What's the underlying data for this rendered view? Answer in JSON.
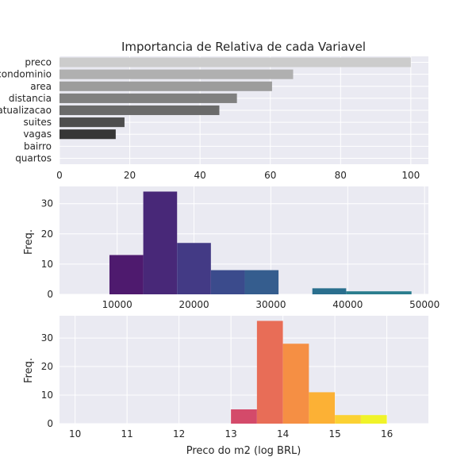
{
  "chart_data": [
    {
      "type": "bar",
      "orientation": "horizontal",
      "title": "Importancia de Relativa de cada Variavel",
      "categories": [
        "preco",
        "condominio",
        "area",
        "distancia",
        "atualizacao",
        "suites",
        "vagas",
        "bairro",
        "quartos"
      ],
      "values": [
        100,
        66.5,
        60.5,
        50.5,
        45.5,
        18.5,
        16,
        0,
        0
      ],
      "colors": [
        "#cccccc",
        "#b0b0b0",
        "#9c9c9c",
        "#808080",
        "#6a6a6a",
        "#4e4e4e",
        "#363636",
        "#eaeaf2",
        "#eaeaf2"
      ],
      "xlim": [
        0,
        105
      ],
      "xticks": [
        0,
        20,
        40,
        60,
        80,
        100
      ],
      "grid": true
    },
    {
      "type": "histogram",
      "ylabel": "Freq.",
      "bins": [
        {
          "x0": 9000,
          "x1": 13400,
          "count": 13,
          "color": "#4e1a6e"
        },
        {
          "x0": 13400,
          "x1": 17800,
          "count": 34,
          "color": "#482878"
        },
        {
          "x0": 17800,
          "x1": 22200,
          "count": 17,
          "color": "#433a85"
        },
        {
          "x0": 22200,
          "x1": 26600,
          "count": 8,
          "color": "#3b4b8c"
        },
        {
          "x0": 26600,
          "x1": 31000,
          "count": 8,
          "color": "#355d8e"
        },
        {
          "x0": 35400,
          "x1": 39800,
          "count": 2,
          "color": "#2a6f8e"
        },
        {
          "x0": 39800,
          "x1": 48300,
          "count": 1,
          "color": "#2a7d8e"
        }
      ],
      "xlim": [
        2500,
        50500
      ],
      "ylim": [
        0,
        35.7
      ],
      "xticks": [
        10000,
        20000,
        30000,
        40000,
        50000
      ],
      "yticks": [
        0,
        10,
        20,
        30
      ],
      "grid": true
    },
    {
      "type": "histogram",
      "xlabel": "Preco do m2 (log BRL)",
      "ylabel": "Freq.",
      "bins": [
        {
          "x0": 13.0,
          "x1": 13.5,
          "count": 5,
          "color": "#d44a6a"
        },
        {
          "x0": 13.5,
          "x1": 14.0,
          "count": 36,
          "color": "#e86d57"
        },
        {
          "x0": 14.0,
          "x1": 14.5,
          "count": 28,
          "color": "#f58f44"
        },
        {
          "x0": 14.5,
          "x1": 15.0,
          "count": 11,
          "color": "#fcb135"
        },
        {
          "x0": 15.0,
          "x1": 15.5,
          "count": 3,
          "color": "#fbd133"
        },
        {
          "x0": 15.5,
          "x1": 16.0,
          "count": 3,
          "color": "#f0f329"
        }
      ],
      "xlim": [
        9.7,
        16.8
      ],
      "ylim": [
        0,
        37.8
      ],
      "xticks": [
        10,
        11,
        12,
        13,
        14,
        15,
        16
      ],
      "yticks": [
        0,
        10,
        20,
        30
      ],
      "grid": true
    }
  ]
}
